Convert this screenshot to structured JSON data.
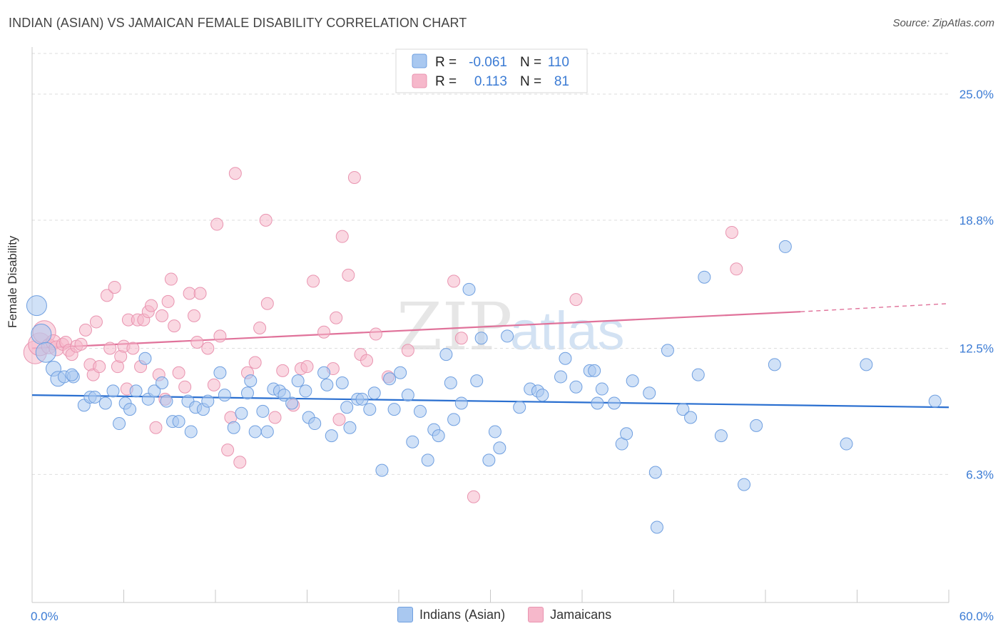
{
  "header": {
    "title": "INDIAN (ASIAN) VS JAMAICAN FEMALE DISABILITY CORRELATION CHART",
    "source": "Source: ZipAtlas.com"
  },
  "watermark": {
    "zip": "ZIP",
    "atlas": "atlas"
  },
  "stats_legend": {
    "row1": {
      "r_label": "R =",
      "r_value": "-0.061",
      "n_label": "N =",
      "n_value": "110"
    },
    "row2": {
      "r_label": "R =",
      "r_value": "0.113",
      "n_label": "N =",
      "n_value": "81"
    }
  },
  "colors": {
    "blue_fill": "#a9c8f0",
    "blue_stroke": "#6f9fe0",
    "blue_line": "#2a6fd0",
    "pink_fill": "#f6b8cb",
    "pink_stroke": "#e994b0",
    "pink_line": "#e0729a",
    "axis_text": "#3b7bd4"
  },
  "chart_data": {
    "type": "scatter",
    "title": "INDIAN (ASIAN) VS JAMAICAN FEMALE DISABILITY CORRELATION CHART",
    "xlabel": "",
    "ylabel": "Female Disability",
    "xlim": [
      0,
      60
    ],
    "ylim": [
      0,
      27
    ],
    "x_tick_labels": [
      "0.0%",
      "60.0%"
    ],
    "y_ticks": [
      6.3,
      12.5,
      18.8,
      25.0
    ],
    "y_tick_labels": [
      "6.3%",
      "12.5%",
      "18.8%",
      "25.0%"
    ],
    "grid": "horizontal dashed",
    "legend": [
      "Indians (Asian)",
      "Jamaicans"
    ],
    "series": [
      {
        "name": "Indians (Asian)",
        "R": -0.061,
        "N": 110,
        "trend": {
          "x": [
            0,
            60
          ],
          "y": [
            10.2,
            9.6
          ]
        },
        "points": [
          [
            0.3,
            14.6
          ],
          [
            0.6,
            13.2
          ],
          [
            0.9,
            12.3
          ],
          [
            1.4,
            11.5
          ],
          [
            1.7,
            11.0
          ],
          [
            2.1,
            11.1
          ],
          [
            2.7,
            11.1
          ],
          [
            2.6,
            11.2
          ],
          [
            3.4,
            9.7
          ],
          [
            3.8,
            10.1
          ],
          [
            4.1,
            10.1
          ],
          [
            4.8,
            9.8
          ],
          [
            5.3,
            10.4
          ],
          [
            5.7,
            8.8
          ],
          [
            6.1,
            9.8
          ],
          [
            6.4,
            9.5
          ],
          [
            6.8,
            10.4
          ],
          [
            7.4,
            12.0
          ],
          [
            7.6,
            10.0
          ],
          [
            8.0,
            10.4
          ],
          [
            8.5,
            10.8
          ],
          [
            8.8,
            9.9
          ],
          [
            9.2,
            8.9
          ],
          [
            9.6,
            8.9
          ],
          [
            10.2,
            9.9
          ],
          [
            10.4,
            8.4
          ],
          [
            10.7,
            9.6
          ],
          [
            11.2,
            9.5
          ],
          [
            11.5,
            9.9
          ],
          [
            12.3,
            11.3
          ],
          [
            12.6,
            10.2
          ],
          [
            13.2,
            8.6
          ],
          [
            13.7,
            9.3
          ],
          [
            14.1,
            10.3
          ],
          [
            14.3,
            10.9
          ],
          [
            14.6,
            8.4
          ],
          [
            15.1,
            9.4
          ],
          [
            15.4,
            8.4
          ],
          [
            15.8,
            10.5
          ],
          [
            16.2,
            10.4
          ],
          [
            16.5,
            10.2
          ],
          [
            17.0,
            9.8
          ],
          [
            17.4,
            10.9
          ],
          [
            17.9,
            10.4
          ],
          [
            18.1,
            9.1
          ],
          [
            18.5,
            8.8
          ],
          [
            19.1,
            11.3
          ],
          [
            19.3,
            10.7
          ],
          [
            19.6,
            8.2
          ],
          [
            20.3,
            10.8
          ],
          [
            20.6,
            9.6
          ],
          [
            20.8,
            8.6
          ],
          [
            21.3,
            10.0
          ],
          [
            21.6,
            10.0
          ],
          [
            22.1,
            9.5
          ],
          [
            22.4,
            10.3
          ],
          [
            22.9,
            6.5
          ],
          [
            23.4,
            11.0
          ],
          [
            23.7,
            9.5
          ],
          [
            24.1,
            11.3
          ],
          [
            24.6,
            10.2
          ],
          [
            24.9,
            7.9
          ],
          [
            25.4,
            9.4
          ],
          [
            25.9,
            7.0
          ],
          [
            26.3,
            8.5
          ],
          [
            26.6,
            8.2
          ],
          [
            27.1,
            12.2
          ],
          [
            27.4,
            10.8
          ],
          [
            27.6,
            9.0
          ],
          [
            28.1,
            9.8
          ],
          [
            28.6,
            15.4
          ],
          [
            29.1,
            10.9
          ],
          [
            29.4,
            13.0
          ],
          [
            29.9,
            7.0
          ],
          [
            30.3,
            8.4
          ],
          [
            30.6,
            7.6
          ],
          [
            31.1,
            13.1
          ],
          [
            31.9,
            9.6
          ],
          [
            32.6,
            10.5
          ],
          [
            33.1,
            10.4
          ],
          [
            33.4,
            10.2
          ],
          [
            34.6,
            11.1
          ],
          [
            34.9,
            12.0
          ],
          [
            35.6,
            10.6
          ],
          [
            36.5,
            11.4
          ],
          [
            36.8,
            11.4
          ],
          [
            37.0,
            9.8
          ],
          [
            37.3,
            10.5
          ],
          [
            38.1,
            9.8
          ],
          [
            38.6,
            7.8
          ],
          [
            38.9,
            8.3
          ],
          [
            39.3,
            10.9
          ],
          [
            40.4,
            10.3
          ],
          [
            40.8,
            6.4
          ],
          [
            40.9,
            3.7
          ],
          [
            41.6,
            12.4
          ],
          [
            42.6,
            9.5
          ],
          [
            43.1,
            9.1
          ],
          [
            43.6,
            11.2
          ],
          [
            44.0,
            16.0
          ],
          [
            45.1,
            8.2
          ],
          [
            46.6,
            5.8
          ],
          [
            47.4,
            8.7
          ],
          [
            48.6,
            11.7
          ],
          [
            49.3,
            17.5
          ],
          [
            53.3,
            7.8
          ],
          [
            54.6,
            11.7
          ],
          [
            59.1,
            9.9
          ]
        ]
      },
      {
        "name": "Jamaicans",
        "R": 0.113,
        "N": 81,
        "trend": {
          "x": [
            0,
            50.3
          ],
          "y": [
            12.5,
            14.3
          ],
          "dashed_x": [
            50.3,
            60
          ],
          "dashed_y": [
            14.3,
            14.7
          ]
        },
        "points": [
          [
            0.2,
            12.3
          ],
          [
            0.5,
            12.7
          ],
          [
            0.8,
            13.3
          ],
          [
            1.1,
            12.6
          ],
          [
            1.4,
            12.8
          ],
          [
            1.6,
            12.5
          ],
          [
            2.0,
            12.7
          ],
          [
            2.2,
            12.8
          ],
          [
            2.4,
            12.4
          ],
          [
            2.6,
            12.2
          ],
          [
            2.9,
            12.6
          ],
          [
            3.2,
            12.7
          ],
          [
            3.5,
            13.4
          ],
          [
            3.8,
            11.7
          ],
          [
            4.0,
            11.2
          ],
          [
            4.2,
            13.8
          ],
          [
            4.4,
            11.6
          ],
          [
            4.9,
            15.1
          ],
          [
            5.1,
            12.5
          ],
          [
            5.4,
            15.5
          ],
          [
            5.6,
            11.6
          ],
          [
            5.8,
            12.1
          ],
          [
            6.0,
            12.6
          ],
          [
            6.2,
            10.5
          ],
          [
            6.3,
            13.9
          ],
          [
            6.6,
            12.5
          ],
          [
            6.9,
            13.9
          ],
          [
            7.1,
            11.6
          ],
          [
            7.3,
            13.9
          ],
          [
            7.6,
            14.3
          ],
          [
            7.8,
            14.6
          ],
          [
            8.1,
            8.6
          ],
          [
            8.3,
            11.2
          ],
          [
            8.5,
            14.1
          ],
          [
            8.7,
            10.0
          ],
          [
            8.9,
            14.8
          ],
          [
            9.1,
            15.9
          ],
          [
            9.3,
            13.6
          ],
          [
            9.6,
            11.3
          ],
          [
            10.0,
            10.6
          ],
          [
            10.3,
            15.2
          ],
          [
            10.6,
            14.1
          ],
          [
            10.8,
            12.8
          ],
          [
            11.0,
            15.2
          ],
          [
            11.5,
            12.5
          ],
          [
            11.9,
            10.7
          ],
          [
            12.1,
            18.6
          ],
          [
            12.3,
            13.1
          ],
          [
            12.8,
            7.5
          ],
          [
            13.0,
            9.1
          ],
          [
            13.3,
            21.1
          ],
          [
            13.6,
            6.9
          ],
          [
            14.1,
            11.3
          ],
          [
            14.6,
            11.8
          ],
          [
            14.9,
            13.5
          ],
          [
            15.3,
            18.8
          ],
          [
            15.4,
            14.7
          ],
          [
            15.9,
            9.1
          ],
          [
            16.4,
            11.4
          ],
          [
            17.1,
            9.7
          ],
          [
            17.6,
            11.5
          ],
          [
            18.0,
            11.6
          ],
          [
            18.4,
            15.8
          ],
          [
            19.1,
            13.3
          ],
          [
            19.7,
            11.5
          ],
          [
            19.9,
            14.0
          ],
          [
            20.1,
            9.0
          ],
          [
            20.3,
            18.0
          ],
          [
            20.7,
            16.1
          ],
          [
            21.1,
            20.9
          ],
          [
            21.5,
            12.2
          ],
          [
            21.9,
            11.9
          ],
          [
            22.5,
            13.2
          ],
          [
            23.3,
            11.1
          ],
          [
            24.6,
            12.4
          ],
          [
            27.6,
            15.8
          ],
          [
            28.1,
            13.0
          ],
          [
            28.9,
            5.2
          ],
          [
            35.6,
            14.9
          ],
          [
            45.8,
            18.2
          ],
          [
            46.1,
            16.4
          ]
        ]
      }
    ]
  }
}
